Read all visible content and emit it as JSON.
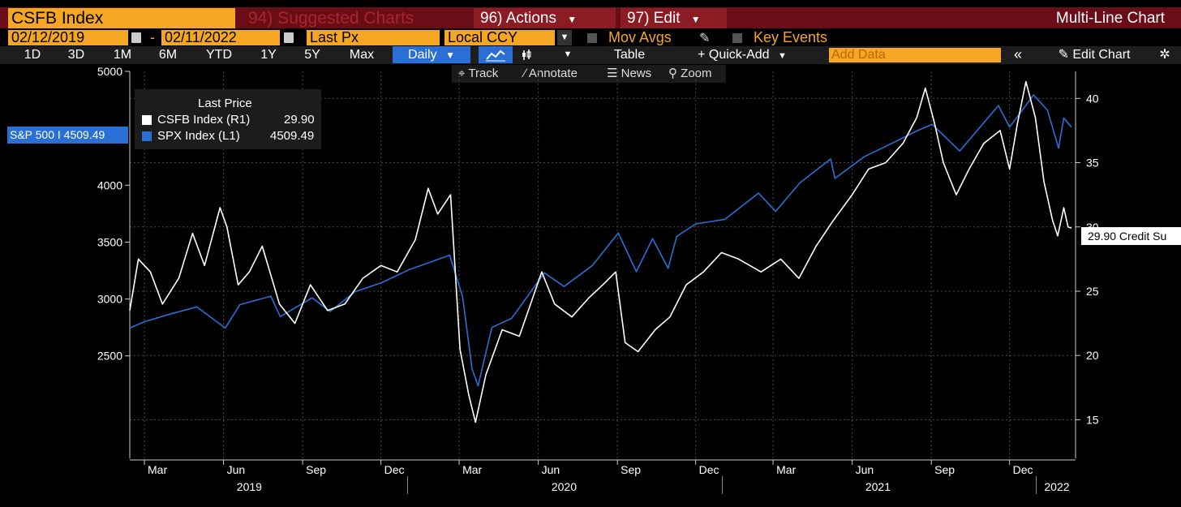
{
  "header": {
    "ticker": "CSFB Index",
    "suggested_charts": "94) Suggested Charts",
    "actions": "96) Actions",
    "edit": "97) Edit",
    "chart_kind": "Multi-Line Chart"
  },
  "controls": {
    "start_date": "02/12/2019",
    "date_sep": "-",
    "end_date": "02/11/2022",
    "field": "Last Px",
    "currency": "Local CCY",
    "mov_avgs": "Mov Avgs",
    "key_events": "Key Events",
    "ranges": [
      "1D",
      "3D",
      "1M",
      "6M",
      "YTD",
      "1Y",
      "5Y",
      "Max"
    ],
    "frequency": "Daily",
    "table": "Table",
    "quick_add": "+ Quick-Add",
    "add_data_placeholder": "Add Data",
    "edit_chart": "Edit Chart"
  },
  "tools": {
    "track": "Track",
    "annotate": "Annotate",
    "news": "News",
    "zoom": "Zoom"
  },
  "legend": {
    "title": "Last Price",
    "items": [
      {
        "label": "CSFB Index  (R1)",
        "value": "29.90"
      },
      {
        "label": "SPX Index  (L1)",
        "value": "4509.49"
      }
    ]
  },
  "flags": {
    "left": "S&P 500 I 4509.49",
    "right": "29.90 Credit Su"
  },
  "colors": {
    "csfb": "#ffffff",
    "spx": "#2a6fd6",
    "accent": "#f5a623",
    "header_bg": "#6b0d16"
  },
  "chart_data": {
    "type": "line",
    "x_range": [
      "2019-02-12",
      "2022-02-11"
    ],
    "x_month_labels": [
      {
        "date": "2019-03-01",
        "label": "Mar"
      },
      {
        "date": "2019-06-01",
        "label": "Jun"
      },
      {
        "date": "2019-09-01",
        "label": "Sep"
      },
      {
        "date": "2019-12-01",
        "label": "Dec"
      },
      {
        "date": "2020-03-01",
        "label": "Mar"
      },
      {
        "date": "2020-06-01",
        "label": "Jun"
      },
      {
        "date": "2020-09-01",
        "label": "Sep"
      },
      {
        "date": "2020-12-01",
        "label": "Dec"
      },
      {
        "date": "2021-03-01",
        "label": "Mar"
      },
      {
        "date": "2021-06-01",
        "label": "Jun"
      },
      {
        "date": "2021-09-01",
        "label": "Sep"
      },
      {
        "date": "2021-12-01",
        "label": "Dec"
      }
    ],
    "x_year_labels": [
      {
        "date": "2019-07-01",
        "label": "2019"
      },
      {
        "date": "2020-07-01",
        "label": "2020"
      },
      {
        "date": "2021-07-01",
        "label": "2021"
      },
      {
        "date": "2022-01-25",
        "label": "2022"
      }
    ],
    "year_dividers": [
      "2020-01-01",
      "2021-01-01",
      "2022-01-01"
    ],
    "left_axis": {
      "min": 1600,
      "max": 5000,
      "ticks": [
        2500,
        3000,
        3500,
        4000,
        5000
      ]
    },
    "right_axis": {
      "min": 12,
      "max": 42.1,
      "ticks": [
        15,
        20,
        25,
        30,
        35,
        40
      ]
    },
    "grid": true,
    "legend_position": "top-left",
    "series": [
      {
        "name": "SPX Index",
        "axis": "left",
        "color": "#2a6fd6",
        "points": [
          [
            "2019-02-12",
            2745
          ],
          [
            "2019-03-01",
            2800
          ],
          [
            "2019-04-01",
            2870
          ],
          [
            "2019-05-01",
            2930
          ],
          [
            "2019-06-03",
            2745
          ],
          [
            "2019-06-20",
            2950
          ],
          [
            "2019-07-26",
            3025
          ],
          [
            "2019-08-06",
            2845
          ],
          [
            "2019-09-12",
            3010
          ],
          [
            "2019-10-03",
            2890
          ],
          [
            "2019-11-01",
            3065
          ],
          [
            "2019-12-01",
            3140
          ],
          [
            "2020-01-02",
            3255
          ],
          [
            "2020-02-19",
            3385
          ],
          [
            "2020-03-05",
            3020
          ],
          [
            "2020-03-16",
            2385
          ],
          [
            "2020-03-23",
            2237
          ],
          [
            "2020-04-08",
            2750
          ],
          [
            "2020-05-01",
            2830
          ],
          [
            "2020-06-08",
            3230
          ],
          [
            "2020-07-01",
            3110
          ],
          [
            "2020-08-03",
            3295
          ],
          [
            "2020-09-02",
            3580
          ],
          [
            "2020-09-23",
            3240
          ],
          [
            "2020-10-12",
            3530
          ],
          [
            "2020-10-30",
            3270
          ],
          [
            "2020-11-09",
            3550
          ],
          [
            "2020-12-01",
            3660
          ],
          [
            "2021-01-04",
            3700
          ],
          [
            "2021-02-12",
            3930
          ],
          [
            "2021-03-04",
            3770
          ],
          [
            "2021-04-01",
            4020
          ],
          [
            "2021-05-07",
            4230
          ],
          [
            "2021-05-12",
            4060
          ],
          [
            "2021-06-15",
            4250
          ],
          [
            "2021-07-15",
            4360
          ],
          [
            "2021-08-16",
            4480
          ],
          [
            "2021-09-02",
            4535
          ],
          [
            "2021-10-04",
            4300
          ],
          [
            "2021-11-18",
            4700
          ],
          [
            "2021-12-01",
            4510
          ],
          [
            "2021-12-29",
            4793
          ],
          [
            "2022-01-14",
            4660
          ],
          [
            "2022-01-27",
            4326
          ],
          [
            "2022-02-02",
            4590
          ],
          [
            "2022-02-11",
            4509.49
          ]
        ]
      },
      {
        "name": "CSFB Index",
        "axis": "right",
        "color": "#ffffff",
        "points": [
          [
            "2019-02-12",
            23.5
          ],
          [
            "2019-02-22",
            27.5
          ],
          [
            "2019-03-08",
            26.5
          ],
          [
            "2019-03-22",
            24.0
          ],
          [
            "2019-04-10",
            26.0
          ],
          [
            "2019-04-26",
            29.5
          ],
          [
            "2019-05-10",
            27.0
          ],
          [
            "2019-05-28",
            31.5
          ],
          [
            "2019-06-05",
            30.0
          ],
          [
            "2019-06-18",
            25.5
          ],
          [
            "2019-07-01",
            26.5
          ],
          [
            "2019-07-16",
            28.5
          ],
          [
            "2019-08-05",
            24.0
          ],
          [
            "2019-08-23",
            22.5
          ],
          [
            "2019-09-10",
            25.5
          ],
          [
            "2019-09-30",
            23.5
          ],
          [
            "2019-10-20",
            24.0
          ],
          [
            "2019-11-10",
            26.0
          ],
          [
            "2019-12-01",
            27.0
          ],
          [
            "2019-12-20",
            26.5
          ],
          [
            "2020-01-10",
            29.0
          ],
          [
            "2020-01-25",
            33.0
          ],
          [
            "2020-02-05",
            31.0
          ],
          [
            "2020-02-20",
            32.5
          ],
          [
            "2020-03-02",
            20.5
          ],
          [
            "2020-03-12",
            17.0
          ],
          [
            "2020-03-20",
            14.8
          ],
          [
            "2020-04-01",
            18.5
          ],
          [
            "2020-04-20",
            22.0
          ],
          [
            "2020-05-10",
            21.5
          ],
          [
            "2020-06-05",
            26.5
          ],
          [
            "2020-06-20",
            24.0
          ],
          [
            "2020-07-10",
            23.0
          ],
          [
            "2020-07-30",
            24.5
          ],
          [
            "2020-08-15",
            25.5
          ],
          [
            "2020-08-30",
            26.5
          ],
          [
            "2020-09-10",
            21.0
          ],
          [
            "2020-09-25",
            20.3
          ],
          [
            "2020-10-15",
            22.0
          ],
          [
            "2020-11-01",
            23.0
          ],
          [
            "2020-11-20",
            25.5
          ],
          [
            "2020-12-10",
            26.5
          ],
          [
            "2020-12-31",
            28.0
          ],
          [
            "2021-01-20",
            27.5
          ],
          [
            "2021-02-15",
            26.5
          ],
          [
            "2021-03-10",
            27.5
          ],
          [
            "2021-03-31",
            26.0
          ],
          [
            "2021-04-20",
            28.5
          ],
          [
            "2021-05-10",
            30.5
          ],
          [
            "2021-06-01",
            32.5
          ],
          [
            "2021-06-20",
            34.5
          ],
          [
            "2021-07-10",
            35.0
          ],
          [
            "2021-07-30",
            36.5
          ],
          [
            "2021-08-15",
            38.5
          ],
          [
            "2021-08-25",
            40.8
          ],
          [
            "2021-09-05",
            38.0
          ],
          [
            "2021-09-15",
            35.0
          ],
          [
            "2021-09-30",
            32.5
          ],
          [
            "2021-10-15",
            34.5
          ],
          [
            "2021-11-01",
            36.5
          ],
          [
            "2021-11-20",
            37.5
          ],
          [
            "2021-12-01",
            34.5
          ],
          [
            "2021-12-10",
            38.0
          ],
          [
            "2021-12-20",
            41.3
          ],
          [
            "2021-12-31",
            38.5
          ],
          [
            "2022-01-10",
            33.5
          ],
          [
            "2022-01-20",
            30.5
          ],
          [
            "2022-01-26",
            29.3
          ],
          [
            "2022-02-02",
            31.5
          ],
          [
            "2022-02-07",
            30.0
          ],
          [
            "2022-02-11",
            29.9
          ]
        ]
      }
    ]
  }
}
